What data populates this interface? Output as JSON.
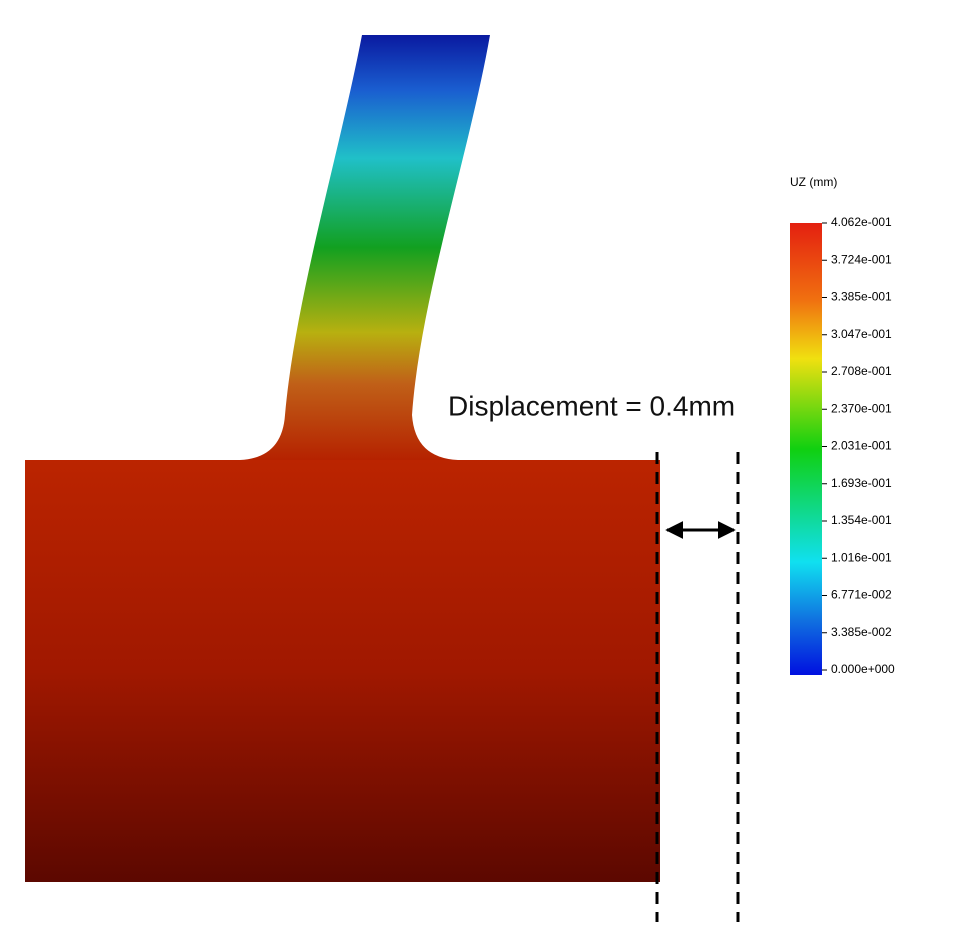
{
  "annotation": "Displacement = 0.4mm",
  "legend": {
    "title": "UZ (mm)",
    "labels": [
      "4.062e-001",
      "3.724e-001",
      "3.385e-001",
      "3.047e-001",
      "2.708e-001",
      "2.370e-001",
      "2.031e-001",
      "1.693e-001",
      "1.354e-001",
      "1.016e-001",
      "6.771e-002",
      "3.385e-002",
      "0.000e+000"
    ]
  }
}
